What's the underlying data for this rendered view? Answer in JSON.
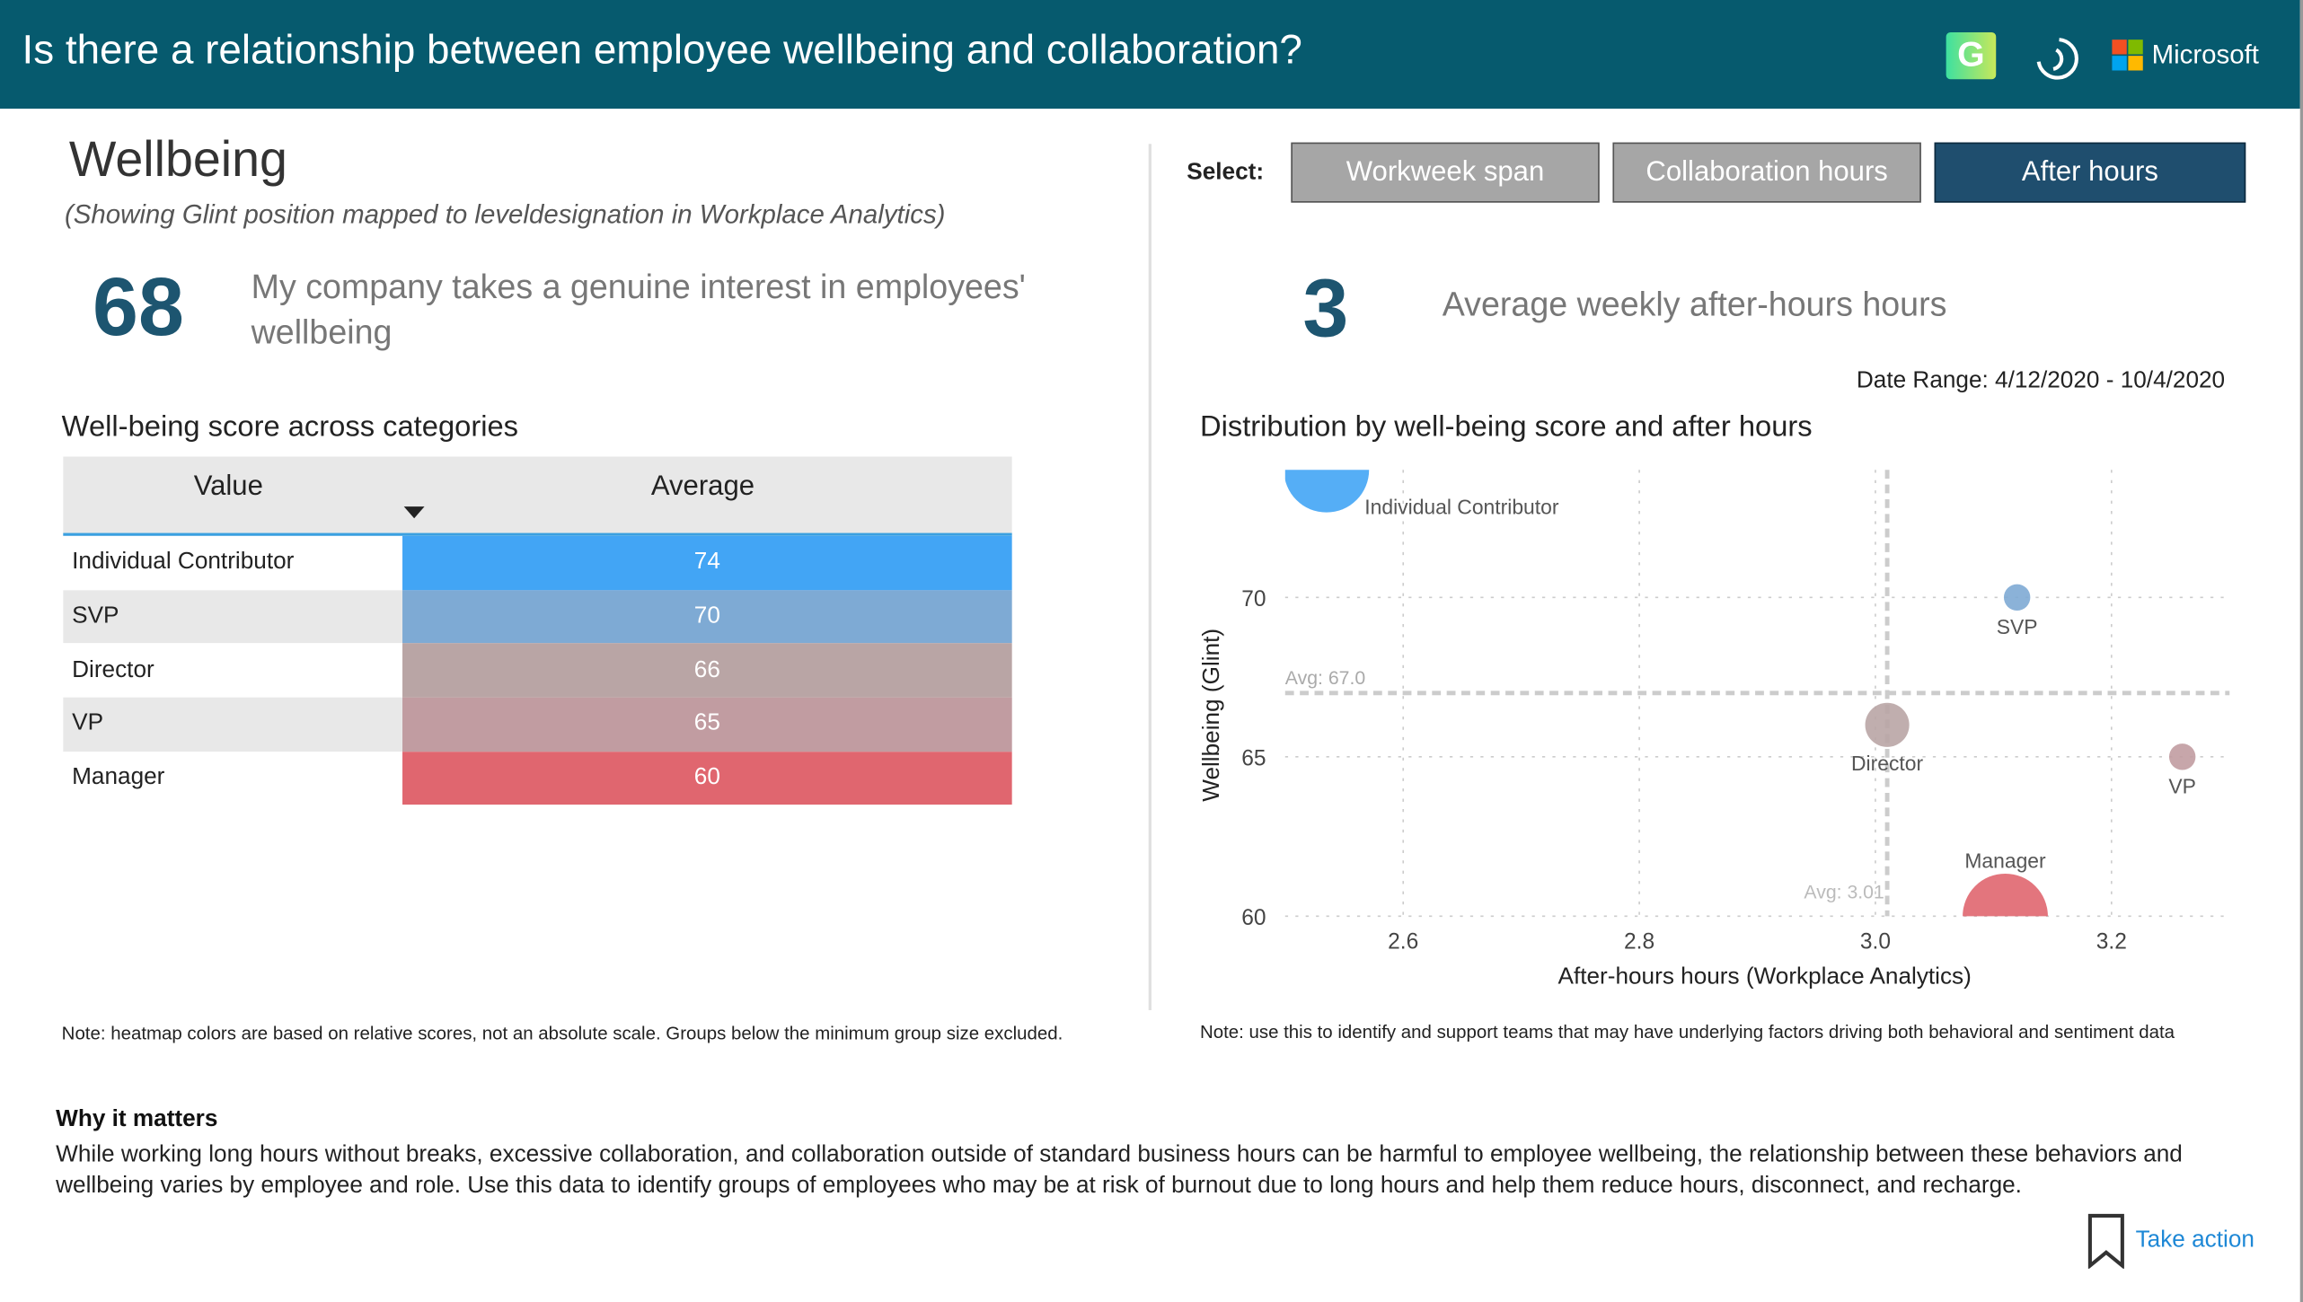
{
  "header": {
    "title": "Is there a relationship between employee wellbeing and collaboration?",
    "brand": "Microsoft",
    "icons": [
      "grammarly-g-icon",
      "glint-spiral-icon",
      "microsoft-logo"
    ]
  },
  "wellbeing": {
    "title": "Wellbeing",
    "subtitle": "(Showing Glint position mapped to leveldesignation in Workplace Analytics)",
    "score": "68",
    "question": "My company takes a genuine interest in employees' wellbeing"
  },
  "table": {
    "title": "Well-being score across categories",
    "headers": [
      "Value",
      "Average"
    ],
    "rows": [
      {
        "label": "Individual Contributor",
        "value": "74",
        "color": "#42a5f5"
      },
      {
        "label": "SVP",
        "value": "70",
        "color": "#7eaad4"
      },
      {
        "label": "Director",
        "value": "66",
        "color": "#b9a5a5"
      },
      {
        "label": "VP",
        "value": "65",
        "color": "#c19ca1"
      },
      {
        "label": "Manager",
        "value": "60",
        "color": "#e0666f"
      }
    ],
    "note": "Note: heatmap colors are based on relative scores, not an absolute scale. Groups below the minimum group size excluded."
  },
  "select": {
    "label": "Select:",
    "buttons": [
      {
        "label": "Workweek span",
        "selected": false
      },
      {
        "label": "Collaboration hours",
        "selected": false
      },
      {
        "label": "After hours",
        "selected": true
      }
    ]
  },
  "metric": {
    "value": "3",
    "label": "Average weekly after-hours hours",
    "date_range": "Date Range: 4/12/2020 - 10/4/2020"
  },
  "chart_data": {
    "type": "scatter",
    "title": "Distribution by well-being score and after hours",
    "xlabel": "After-hours hours (Workplace Analytics)",
    "ylabel": "Wellbeing (Glint)",
    "xlim": [
      2.5,
      3.3
    ],
    "ylim": [
      60,
      74
    ],
    "xticks": [
      "2.6",
      "2.8",
      "3.0",
      "3.2"
    ],
    "yticks": [
      "60",
      "65",
      "70"
    ],
    "grid": true,
    "avg_x": {
      "value": 3.01,
      "label": "Avg: 3.01"
    },
    "avg_y": {
      "value": 67.0,
      "label": "Avg: 67.0"
    },
    "points": [
      {
        "name": "Individual Contributor",
        "x": 2.535,
        "y": 74,
        "size": "large",
        "color": "#42a5f5"
      },
      {
        "name": "SVP",
        "x": 3.12,
        "y": 70,
        "size": "small",
        "color": "#7eaad4"
      },
      {
        "name": "Director",
        "x": 3.01,
        "y": 66,
        "size": "medium",
        "color": "#b9a5a5"
      },
      {
        "name": "VP",
        "x": 3.26,
        "y": 65,
        "size": "small",
        "color": "#c19ca1"
      },
      {
        "name": "Manager",
        "x": 3.11,
        "y": 60,
        "size": "large",
        "color": "#e0666f"
      }
    ],
    "note": "Note: use this to identify and support teams that may have underlying factors driving both behavioral and sentiment data"
  },
  "why": {
    "heading": "Why it matters",
    "text": "While working long hours without breaks, excessive collaboration, and collaboration outside of standard business hours can be harmful to employee wellbeing, the relationship between these behaviors and wellbeing varies by employee and role. Use this data to identify groups of employees who may be at risk of burnout due to long hours and help them reduce hours, disconnect, and recharge."
  },
  "action": {
    "label": "Take action"
  },
  "colors": {
    "header": "#065a6e",
    "accent": "#1d5570",
    "button": "#a6a6a6",
    "button_selected": "#1f4e6e"
  }
}
